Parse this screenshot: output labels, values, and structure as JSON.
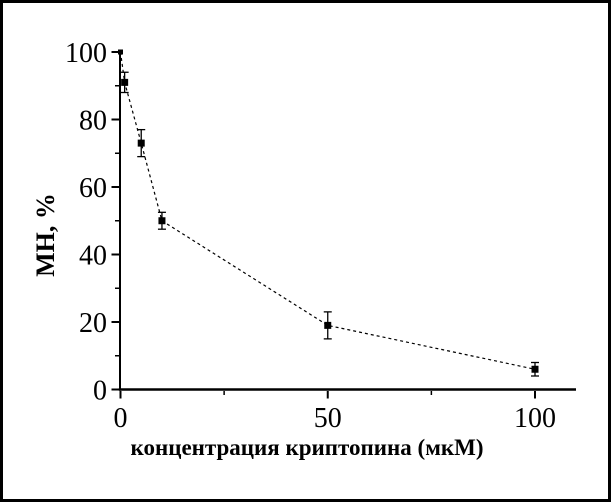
{
  "figure": {
    "background": "#ffffff",
    "frame_color": "#000000"
  },
  "chart_data": {
    "type": "line",
    "title": "",
    "xlabel": "концентрация криптопина (мкМ)",
    "ylabel": "МН, %",
    "x": [
      0,
      1,
      5,
      10,
      50,
      100
    ],
    "y": [
      100,
      91,
      73,
      50,
      19,
      6
    ],
    "y_err": [
      0,
      3,
      4,
      2.5,
      4,
      2
    ],
    "x_ticks": [
      0,
      50,
      100
    ],
    "x_minor_ticks": [
      25,
      75
    ],
    "y_ticks": [
      0,
      20,
      40,
      60,
      80,
      100
    ],
    "y_minor_ticks": [
      10,
      30,
      50,
      70,
      90
    ],
    "xlim": [
      0,
      110
    ],
    "ylim": [
      0,
      100
    ],
    "marker": "filled-square",
    "line_style": "dashed",
    "color": "#000000",
    "grid": false,
    "legend": "none"
  }
}
